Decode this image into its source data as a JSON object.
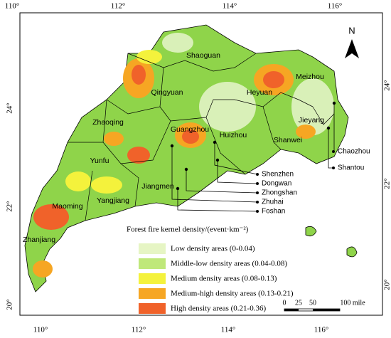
{
  "axes": {
    "top_labels": [
      "110°",
      "112°",
      "114°",
      "116°"
    ],
    "bottom_labels": [
      "110°",
      "112°",
      "114°",
      "116°"
    ],
    "left_labels": [
      "24°",
      "22°",
      "20°"
    ],
    "right_labels": [
      "24°",
      "22°",
      "20°"
    ]
  },
  "north": "N",
  "cities": [
    "Shaoguan",
    "Qingyuan",
    "Heyuan",
    "Meizhou",
    "Zhaoqing",
    "Guangzhou",
    "Huizhou",
    "Jieyang",
    "Shanwei",
    "Yunfu",
    "Jiangmen",
    "Maoming",
    "Yangjiang",
    "Zhanjiang"
  ],
  "callouts": [
    "Shenzhen",
    "Dongwan",
    "Zhongshan",
    "Zhuhai",
    "Foshan",
    "Chaozhou",
    "Shantou"
  ],
  "legend": {
    "title": "Forest fire kernel density/(event·km⁻²)",
    "items": [
      {
        "label": "Low density areas (0-0.04)",
        "color": "#e6f5c4"
      },
      {
        "label": "Middle-low density areas (0.04-0.08)",
        "color": "#bfe87a"
      },
      {
        "label": "Medium density areas (0.08-0.13)",
        "color": "#f4f23c"
      },
      {
        "label": "Medium-high density areas (0.13-0.21)",
        "color": "#f6a623"
      },
      {
        "label": "High density areas (0.21-0.36)",
        "color": "#f0622a"
      }
    ]
  },
  "scale_bar": [
    "0",
    "25",
    "50",
    "100 mile"
  ]
}
